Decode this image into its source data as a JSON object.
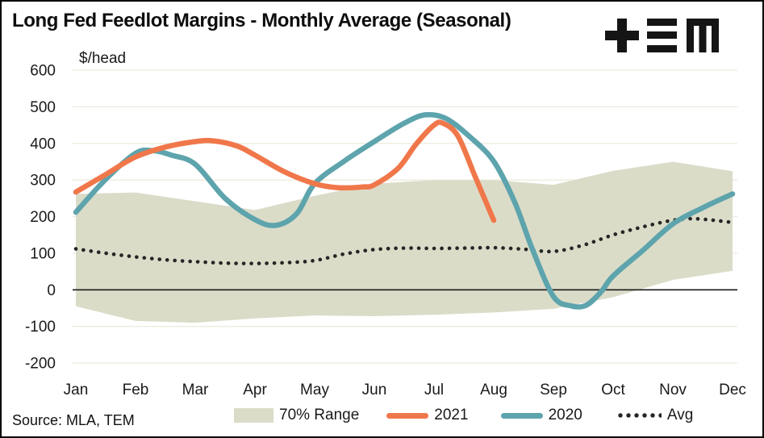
{
  "title": "Long Fed Feedlot Margins - Monthly Average (Seasonal)",
  "source": "Source: MLA, TEM",
  "logo_name": "tem-logo",
  "legend": {
    "range_label": "70% Range",
    "s2021_label": "2021",
    "s2020_label": "2020",
    "avg_label": "Avg"
  },
  "colors": {
    "band": "#DBDCC8",
    "y2021": "#F0774A",
    "y2020": "#5DA4AD",
    "avg": "#262626",
    "gridline": "#ECEBDE",
    "zero_line": "#1A1A1A",
    "text": "#1A1A1A",
    "logo": "#151515",
    "background": "#FFFFFF",
    "border": "#000000"
  },
  "chart_data": {
    "type": "line",
    "title": "Long Fed Feedlot Margins - Monthly Average (Seasonal)",
    "xlabel": "",
    "ylabel": "$/head",
    "categories": [
      "Jan",
      "Feb",
      "Mar",
      "Apr",
      "May",
      "Jun",
      "Jul",
      "Aug",
      "Sep",
      "Oct",
      "Nov",
      "Dec"
    ],
    "axis": {
      "ylim": [
        -200,
        600
      ],
      "ytick_step": 100,
      "yticks": [
        -200,
        -100,
        0,
        100,
        200,
        300,
        400,
        500,
        600
      ]
    },
    "grid": true,
    "legend_position": "bottom",
    "band": {
      "name": "70% Range",
      "top": [
        262,
        266,
        242,
        218,
        257,
        290,
        300,
        300,
        287,
        325,
        350,
        324
      ],
      "bottom": [
        -45,
        -85,
        -90,
        -78,
        -70,
        -72,
        -68,
        -62,
        -52,
        -20,
        27,
        52
      ]
    },
    "series": [
      {
        "name": "2021",
        "color": "#F0774A",
        "style": "solid",
        "monthly_values": [
          267,
          363,
          405,
          368,
          290,
          287,
          455,
          190,
          null,
          null,
          null,
          null
        ],
        "points": [
          [
            0,
            267
          ],
          [
            0.5,
            315
          ],
          [
            1,
            363
          ],
          [
            1.5,
            390
          ],
          [
            2,
            405
          ],
          [
            2.3,
            407
          ],
          [
            2.7,
            393
          ],
          [
            3,
            368
          ],
          [
            3.5,
            322
          ],
          [
            4,
            290
          ],
          [
            4.4,
            279
          ],
          [
            4.8,
            281
          ],
          [
            5,
            287
          ],
          [
            5.4,
            332
          ],
          [
            5.7,
            398
          ],
          [
            6,
            450
          ],
          [
            6.15,
            455
          ],
          [
            6.4,
            420
          ],
          [
            6.7,
            305
          ],
          [
            7,
            190
          ]
        ]
      },
      {
        "name": "2020",
        "color": "#5DA4AD",
        "style": "solid",
        "monthly_values": [
          212,
          373,
          343,
          192,
          290,
          405,
          476,
          351,
          -18,
          38,
          180,
          262
        ],
        "points": [
          [
            0,
            212
          ],
          [
            0.5,
            302
          ],
          [
            1,
            373
          ],
          [
            1.3,
            380
          ],
          [
            1.6,
            368
          ],
          [
            2,
            343
          ],
          [
            2.5,
            250
          ],
          [
            3,
            192
          ],
          [
            3.35,
            176
          ],
          [
            3.7,
            208
          ],
          [
            4,
            290
          ],
          [
            4.5,
            352
          ],
          [
            5,
            405
          ],
          [
            5.5,
            455
          ],
          [
            5.85,
            478
          ],
          [
            6.2,
            468
          ],
          [
            6.6,
            418
          ],
          [
            7,
            351
          ],
          [
            7.35,
            240
          ],
          [
            7.65,
            110
          ],
          [
            8,
            -18
          ],
          [
            8.3,
            -44
          ],
          [
            8.55,
            -42
          ],
          [
            8.8,
            -5
          ],
          [
            9,
            38
          ],
          [
            9.5,
            108
          ],
          [
            10,
            180
          ],
          [
            10.5,
            224
          ],
          [
            11,
            262
          ]
        ]
      },
      {
        "name": "Avg",
        "color": "#262626",
        "style": "dotted",
        "monthly_values": [
          112,
          90,
          77,
          72,
          80,
          110,
          113,
          115,
          105,
          150,
          190,
          184
        ],
        "points": [
          [
            0,
            112
          ],
          [
            0.5,
            100
          ],
          [
            1,
            90
          ],
          [
            1.5,
            82
          ],
          [
            2,
            77
          ],
          [
            2.5,
            73
          ],
          [
            3,
            72
          ],
          [
            3.5,
            74
          ],
          [
            4,
            80
          ],
          [
            4.5,
            98
          ],
          [
            5,
            110
          ],
          [
            5.5,
            114
          ],
          [
            6,
            113
          ],
          [
            6.5,
            114
          ],
          [
            7,
            115
          ],
          [
            7.5,
            111
          ],
          [
            8,
            105
          ],
          [
            8.5,
            122
          ],
          [
            9,
            150
          ],
          [
            9.5,
            172
          ],
          [
            10,
            190
          ],
          [
            10.4,
            194
          ],
          [
            11,
            184
          ]
        ]
      }
    ]
  }
}
